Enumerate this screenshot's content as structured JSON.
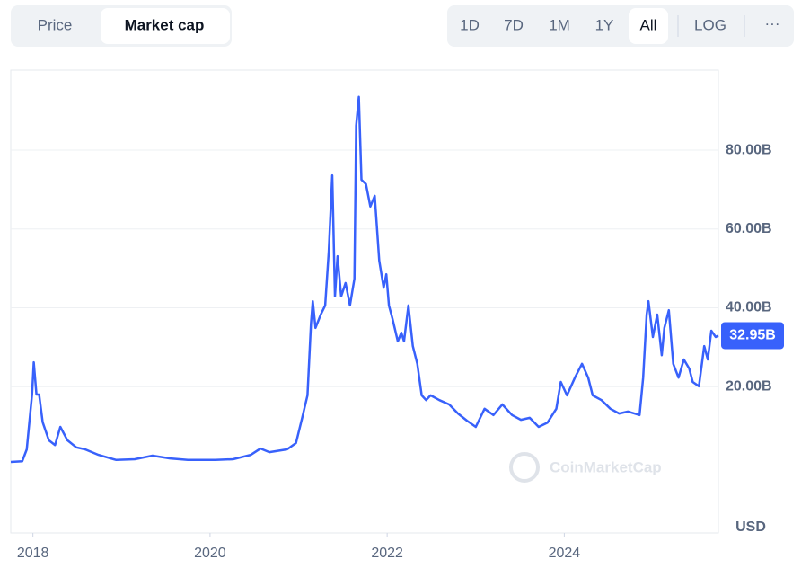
{
  "tabs": [
    "Price",
    "Market cap"
  ],
  "ranges": [
    "1D",
    "7D",
    "1M",
    "1Y",
    "All"
  ],
  "log_toggle": "LOG",
  "more": "···",
  "currency": "USD",
  "watermark": "CoinMarketCap",
  "chart_data": {
    "type": "line",
    "color": "#3861fb",
    "grid": true,
    "log_scale": false,
    "xlim": [
      2017.75,
      2025.74
    ],
    "xticks": [
      2018,
      2020,
      2022,
      2024
    ],
    "ylim": [
      -17.1,
      100.3
    ],
    "yticks": [
      {
        "value": 20,
        "label": "20.00B"
      },
      {
        "value": 40,
        "label": "40.00B"
      },
      {
        "value": 60,
        "label": "60.00B"
      },
      {
        "value": 80,
        "label": "80.00B"
      }
    ],
    "last_value": {
      "value": 32.95,
      "label": "32.95B"
    },
    "x": [
      2017.75,
      2017.88,
      2017.93,
      2017.96,
      2017.99,
      2018.01,
      2018.04,
      2018.07,
      2018.11,
      2018.18,
      2018.25,
      2018.31,
      2018.39,
      2018.49,
      2018.59,
      2018.74,
      2018.94,
      2019.15,
      2019.35,
      2019.55,
      2019.75,
      2020.06,
      2020.26,
      2020.46,
      2020.57,
      2020.67,
      2020.87,
      2020.97,
      2021.04,
      2021.1,
      2021.14,
      2021.16,
      2021.19,
      2021.25,
      2021.3,
      2021.34,
      2021.38,
      2021.41,
      2021.44,
      2021.48,
      2021.53,
      2021.58,
      2021.63,
      2021.65,
      2021.68,
      2021.71,
      2021.76,
      2021.81,
      2021.86,
      2021.91,
      2021.96,
      2021.99,
      2022.02,
      2022.06,
      2022.12,
      2022.16,
      2022.19,
      2022.24,
      2022.29,
      2022.34,
      2022.39,
      2022.44,
      2022.49,
      2022.59,
      2022.7,
      2022.8,
      2022.9,
      2023.0,
      2023.1,
      2023.2,
      2023.3,
      2023.41,
      2023.51,
      2023.61,
      2023.71,
      2023.81,
      2023.91,
      2023.96,
      2024.03,
      2024.12,
      2024.2,
      2024.27,
      2024.32,
      2024.42,
      2024.52,
      2024.62,
      2024.72,
      2024.85,
      2024.89,
      2024.93,
      2024.95,
      2025.0,
      2025.05,
      2025.1,
      2025.13,
      2025.18,
      2025.23,
      2025.29,
      2025.35,
      2025.41,
      2025.45,
      2025.52,
      2025.58,
      2025.62,
      2025.66,
      2025.71,
      2025.74
    ],
    "values": [
      0.9,
      1.1,
      4.1,
      11,
      18,
      26.2,
      18,
      18,
      11,
      6.4,
      5.2,
      9.8,
      6.4,
      4.6,
      4.1,
      2.7,
      1.4,
      1.6,
      2.5,
      1.8,
      1.4,
      1.4,
      1.6,
      2.7,
      4.3,
      3.4,
      4.1,
      5.7,
      12.1,
      17.8,
      36,
      41.7,
      34.9,
      38.3,
      40.6,
      54.3,
      73.6,
      42.9,
      53.1,
      42.9,
      46.3,
      40.6,
      47.4,
      86.2,
      93.5,
      72.5,
      71.4,
      65.7,
      68.4,
      52,
      45.1,
      48.5,
      40.6,
      37.2,
      31.5,
      33.7,
      31.5,
      40.6,
      30.3,
      25.8,
      17.8,
      16.6,
      17.8,
      16.6,
      15.5,
      13.2,
      11.4,
      9.8,
      14.4,
      12.8,
      15.5,
      12.8,
      11.6,
      12.1,
      9.8,
      10.9,
      14.4,
      21.2,
      17.8,
      22.3,
      25.8,
      22.3,
      17.8,
      16.6,
      14.4,
      13.2,
      13.7,
      12.8,
      22.3,
      38.3,
      41.7,
      32.6,
      38.3,
      28,
      34.9,
      39.4,
      25.8,
      22.3,
      26.9,
      24.6,
      21.2,
      20.1,
      30.3,
      26.9,
      34.2,
      32.6,
      32.95
    ]
  }
}
